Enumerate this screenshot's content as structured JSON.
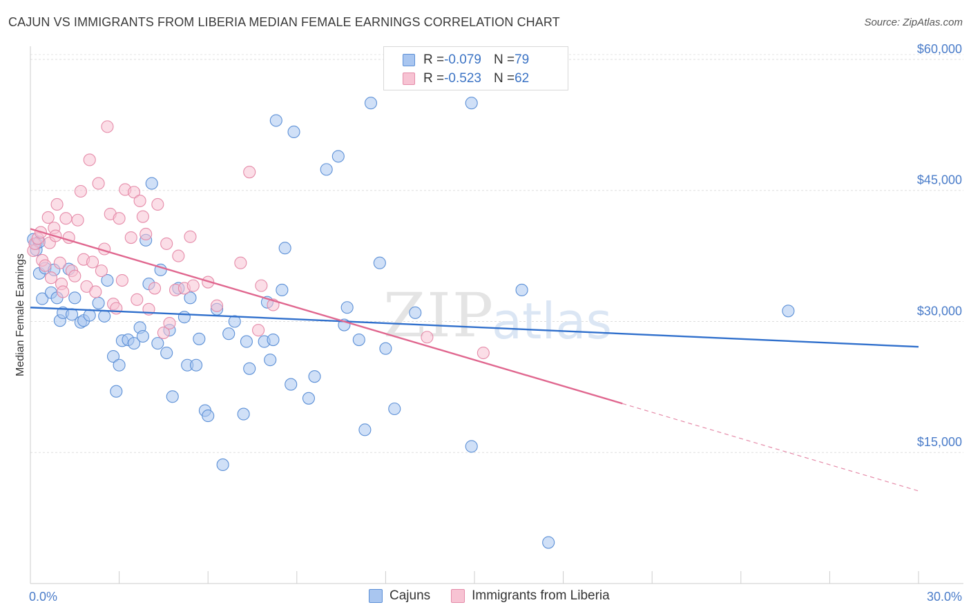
{
  "title": "CAJUN VS IMMIGRANTS FROM LIBERIA MEDIAN FEMALE EARNINGS CORRELATION CHART",
  "source": "Source: ZipAtlas.com",
  "watermark": {
    "zip": "ZIP",
    "atlas": "atlas"
  },
  "legend": {
    "rows": [
      {
        "r_label": "R = ",
        "r_value": "-0.079",
        "n_label": "N = ",
        "n_value": "79",
        "color": "#a9c6f0",
        "border": "#5b8fd6"
      },
      {
        "r_label": "R = ",
        "r_value": "-0.523",
        "n_label": "N = ",
        "n_value": "62",
        "color": "#f7c3d3",
        "border": "#e58aa8"
      }
    ]
  },
  "chart_data": {
    "type": "scatter",
    "xlabel": "",
    "ylabel": "Median Female Earnings",
    "xlim": [
      0,
      30
    ],
    "ylim": [
      0,
      61500
    ],
    "x_tick_labels": [
      "0.0%",
      "30.0%"
    ],
    "y_ticks": [
      15000,
      30000,
      45000,
      60000
    ],
    "y_tick_labels": [
      "$15,000",
      "$30,000",
      "$45,000",
      "$60,000"
    ],
    "grid": true,
    "legend_position": "bottom",
    "series": [
      {
        "name": "Cajuns",
        "color": "#5b8fd6",
        "fill": "#a9c6f0",
        "trend": {
          "x0": 0,
          "y0": 31600,
          "x1": 30,
          "y1": 27100,
          "solid_to": 30
        },
        "points": [
          [
            0.1,
            39400
          ],
          [
            0.2,
            38900
          ],
          [
            0.3,
            35500
          ],
          [
            0.4,
            32600
          ],
          [
            0.5,
            36100
          ],
          [
            0.7,
            33300
          ],
          [
            0.8,
            35900
          ],
          [
            0.9,
            32700
          ],
          [
            1.0,
            30100
          ],
          [
            1.1,
            31000
          ],
          [
            1.3,
            36000
          ],
          [
            1.4,
            30800
          ],
          [
            1.5,
            32700
          ],
          [
            1.7,
            29900
          ],
          [
            1.8,
            30100
          ],
          [
            2.0,
            30700
          ],
          [
            2.3,
            32100
          ],
          [
            2.5,
            30600
          ],
          [
            2.6,
            34700
          ],
          [
            2.8,
            26000
          ],
          [
            2.9,
            22000
          ],
          [
            3.0,
            25000
          ],
          [
            3.1,
            27800
          ],
          [
            3.3,
            27900
          ],
          [
            3.5,
            27500
          ],
          [
            3.7,
            29300
          ],
          [
            3.8,
            28300
          ],
          [
            3.9,
            39300
          ],
          [
            4.0,
            34300
          ],
          [
            4.1,
            45800
          ],
          [
            4.3,
            27500
          ],
          [
            4.4,
            35900
          ],
          [
            4.6,
            26400
          ],
          [
            4.7,
            29000
          ],
          [
            4.8,
            21400
          ],
          [
            5.0,
            33800
          ],
          [
            5.2,
            30500
          ],
          [
            5.3,
            25000
          ],
          [
            5.4,
            32700
          ],
          [
            5.6,
            25000
          ],
          [
            5.7,
            28000
          ],
          [
            5.9,
            19800
          ],
          [
            6.0,
            19200
          ],
          [
            6.3,
            31400
          ],
          [
            6.5,
            13600
          ],
          [
            6.7,
            28600
          ],
          [
            6.9,
            30000
          ],
          [
            7.2,
            19400
          ],
          [
            7.3,
            27700
          ],
          [
            7.4,
            24600
          ],
          [
            7.9,
            27700
          ],
          [
            8.0,
            32200
          ],
          [
            8.1,
            25600
          ],
          [
            8.2,
            27900
          ],
          [
            8.3,
            53000
          ],
          [
            8.5,
            33600
          ],
          [
            8.6,
            38400
          ],
          [
            8.8,
            22800
          ],
          [
            8.9,
            51700
          ],
          [
            9.4,
            21200
          ],
          [
            9.6,
            23700
          ],
          [
            10.0,
            47400
          ],
          [
            10.4,
            48900
          ],
          [
            10.6,
            29600
          ],
          [
            10.7,
            31600
          ],
          [
            11.1,
            27900
          ],
          [
            11.3,
            17600
          ],
          [
            11.5,
            55000
          ],
          [
            11.8,
            36700
          ],
          [
            12.0,
            26900
          ],
          [
            12.3,
            20000
          ],
          [
            13.0,
            31000
          ],
          [
            14.9,
            55000
          ],
          [
            14.9,
            15700
          ],
          [
            16.6,
            33600
          ],
          [
            17.5,
            4700
          ],
          [
            25.6,
            31200
          ],
          [
            0.2,
            38200
          ],
          [
            0.3,
            39100
          ]
        ]
      },
      {
        "name": "Immigrants from Liberia",
        "color": "#e58aa8",
        "fill": "#f7c3d3",
        "trend": {
          "x0": 0,
          "y0": 40600,
          "x1": 30,
          "y1": 10600,
          "solid_to": 20
        },
        "points": [
          [
            0.1,
            38100
          ],
          [
            0.15,
            38900
          ],
          [
            0.25,
            39500
          ],
          [
            0.35,
            40200
          ],
          [
            0.4,
            37000
          ],
          [
            0.5,
            36400
          ],
          [
            0.6,
            41900
          ],
          [
            0.65,
            39000
          ],
          [
            0.7,
            35000
          ],
          [
            0.8,
            40700
          ],
          [
            0.85,
            39800
          ],
          [
            0.9,
            43400
          ],
          [
            1.0,
            36700
          ],
          [
            1.05,
            34300
          ],
          [
            1.1,
            33400
          ],
          [
            1.2,
            41800
          ],
          [
            1.3,
            39600
          ],
          [
            1.4,
            35800
          ],
          [
            1.5,
            35200
          ],
          [
            1.6,
            41600
          ],
          [
            1.7,
            44900
          ],
          [
            1.8,
            37100
          ],
          [
            1.9,
            34000
          ],
          [
            2.0,
            48500
          ],
          [
            2.1,
            36800
          ],
          [
            2.2,
            33400
          ],
          [
            2.3,
            45800
          ],
          [
            2.4,
            35800
          ],
          [
            2.5,
            38300
          ],
          [
            2.6,
            52300
          ],
          [
            2.7,
            42300
          ],
          [
            2.8,
            32000
          ],
          [
            2.9,
            31500
          ],
          [
            3.0,
            41800
          ],
          [
            3.1,
            34700
          ],
          [
            3.2,
            45100
          ],
          [
            3.4,
            39600
          ],
          [
            3.5,
            44800
          ],
          [
            3.6,
            32500
          ],
          [
            3.7,
            43800
          ],
          [
            3.8,
            42000
          ],
          [
            3.9,
            40000
          ],
          [
            4.0,
            31400
          ],
          [
            4.2,
            33800
          ],
          [
            4.3,
            43400
          ],
          [
            4.5,
            28700
          ],
          [
            4.6,
            38900
          ],
          [
            4.7,
            29800
          ],
          [
            4.9,
            33600
          ],
          [
            5.0,
            37500
          ],
          [
            5.2,
            33800
          ],
          [
            5.4,
            39700
          ],
          [
            5.5,
            34100
          ],
          [
            6.0,
            34500
          ],
          [
            6.3,
            31800
          ],
          [
            7.1,
            36700
          ],
          [
            7.4,
            47100
          ],
          [
            7.7,
            29000
          ],
          [
            7.8,
            34100
          ],
          [
            8.2,
            31900
          ],
          [
            13.4,
            28200
          ],
          [
            15.3,
            26400
          ]
        ]
      }
    ]
  }
}
